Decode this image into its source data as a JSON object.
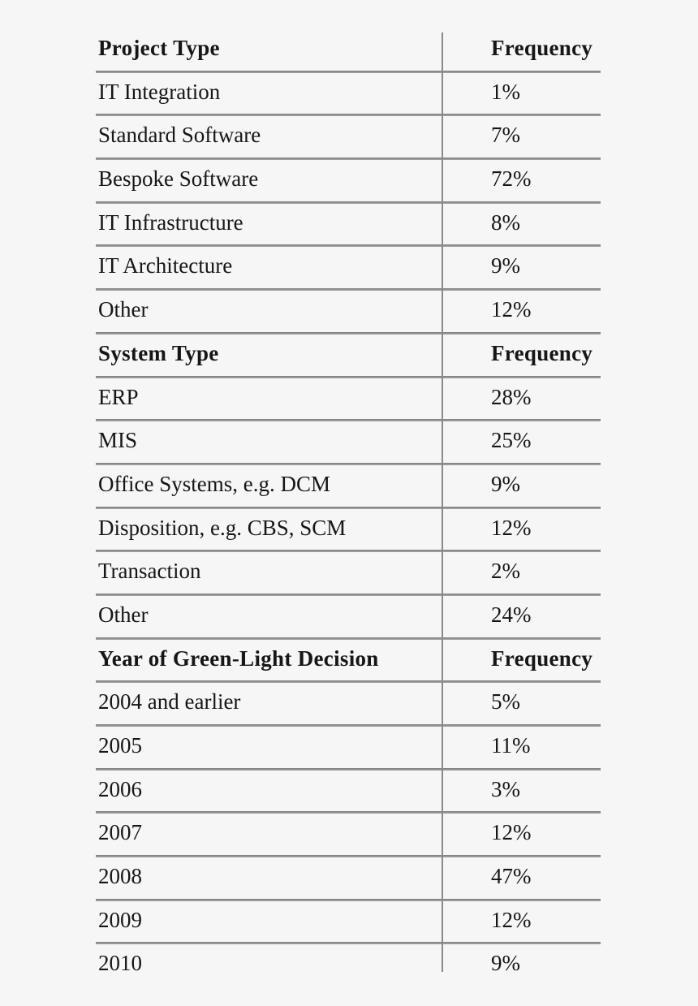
{
  "page": {
    "background_color": "#f6f6f6",
    "text_color": "#161616",
    "line_color": "#8a8a8a"
  },
  "table": {
    "sections": [
      {
        "header": "Project Type",
        "header_value": "Frequency",
        "rows": [
          {
            "label": "IT Integration",
            "value": "1%"
          },
          {
            "label": "Standard Software",
            "value": "7%"
          },
          {
            "label": "Bespoke Software",
            "value": "72%"
          },
          {
            "label": "IT Infrastructure",
            "value": "8%"
          },
          {
            "label": "IT Architecture",
            "value": "9%"
          },
          {
            "label": "Other",
            "value": "12%"
          }
        ]
      },
      {
        "header": "System Type",
        "header_value": "Frequency",
        "rows": [
          {
            "label": "ERP",
            "value": "28%"
          },
          {
            "label": "MIS",
            "value": "25%"
          },
          {
            "label": "Office Systems, e.g. DCM",
            "value": "9%"
          },
          {
            "label": "Disposition, e.g. CBS, SCM",
            "value": "12%"
          },
          {
            "label": "Transaction",
            "value": "2%"
          },
          {
            "label": "Other",
            "value": "24%"
          }
        ]
      },
      {
        "header": "Year of Green-Light Decision",
        "header_value": "Frequency",
        "rows": [
          {
            "label": "2004 and earlier",
            "value": "5%"
          },
          {
            "label": "2005",
            "value": "11%"
          },
          {
            "label": "2006",
            "value": "3%"
          },
          {
            "label": "2007",
            "value": "12%"
          },
          {
            "label": "2008",
            "value": "47%"
          },
          {
            "label": "2009",
            "value": "12%"
          },
          {
            "label": "2010",
            "value": "9%"
          }
        ]
      }
    ]
  },
  "chart_data": [
    {
      "type": "table",
      "title": "Project Type",
      "columns": [
        "Project Type",
        "Frequency"
      ],
      "categories": [
        "IT Integration",
        "Standard Software",
        "Bespoke Software",
        "IT Infrastructure",
        "IT Architecture",
        "Other"
      ],
      "values_pct": [
        1,
        7,
        72,
        8,
        9,
        12
      ]
    },
    {
      "type": "table",
      "title": "System Type",
      "columns": [
        "System Type",
        "Frequency"
      ],
      "categories": [
        "ERP",
        "MIS",
        "Office Systems, e.g. DCM",
        "Disposition, e.g. CBS, SCM",
        "Transaction",
        "Other"
      ],
      "values_pct": [
        28,
        25,
        9,
        12,
        2,
        24
      ]
    },
    {
      "type": "table",
      "title": "Year of Green-Light Decision",
      "columns": [
        "Year of Green-Light Decision",
        "Frequency"
      ],
      "categories": [
        "2004 and earlier",
        "2005",
        "2006",
        "2007",
        "2008",
        "2009",
        "2010"
      ],
      "values_pct": [
        5,
        11,
        3,
        12,
        47,
        12,
        9
      ]
    }
  ]
}
